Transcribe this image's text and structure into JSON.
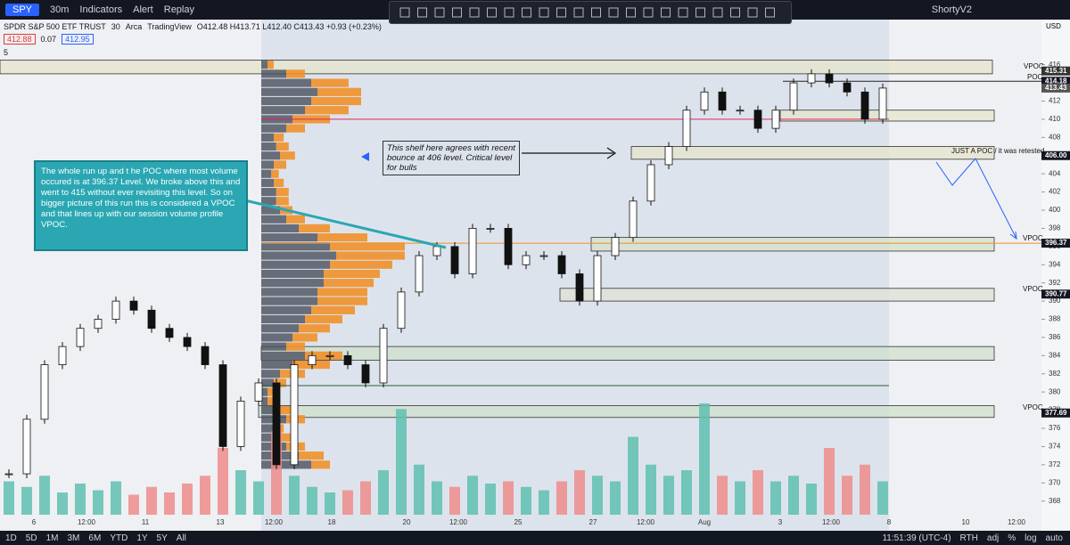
{
  "header": {
    "symbol": "SPY",
    "interval": "30m",
    "indicators": "Indicators",
    "alert": "Alert",
    "replay": "Replay",
    "layout": "ShortyV2"
  },
  "legend": {
    "name": "SPDR S&P 500 ETF TRUST",
    "interval": "30",
    "exchange": "Arca",
    "source": "TradingView",
    "ohlc": "O412.48 H413.71 L412.40 C413.43 +0.93 (+0.23%)",
    "bid": "412.88",
    "spread": "0.07",
    "ask": "412.95",
    "indicator_count": "5"
  },
  "currency": "USD",
  "chart_data": {
    "type": "candlestick",
    "closes": [
      371,
      377,
      383,
      385,
      387,
      388,
      390,
      389,
      387,
      386,
      385,
      383,
      374,
      379,
      381,
      372,
      383,
      384,
      384,
      383,
      381,
      387,
      391,
      395,
      396,
      393,
      398,
      398,
      394,
      395,
      395,
      393,
      390,
      395,
      397,
      401,
      405,
      407,
      411,
      413,
      411,
      411,
      409,
      411,
      414,
      415,
      414,
      413,
      410,
      413.43
    ],
    "volumes": [
      30,
      25,
      35,
      20,
      28,
      22,
      30,
      18,
      25,
      20,
      28,
      35,
      60,
      40,
      30,
      75,
      35,
      25,
      20,
      22,
      30,
      40,
      95,
      45,
      30,
      25,
      35,
      28,
      30,
      25,
      22,
      30,
      40,
      35,
      30,
      70,
      45,
      35,
      40,
      100,
      35,
      30,
      40,
      30,
      35,
      28,
      60,
      35,
      45,
      30
    ],
    "profile_prices": [
      372,
      373,
      374,
      375,
      376,
      377,
      378,
      379,
      380,
      381,
      382,
      383,
      384,
      385,
      386,
      387,
      388,
      389,
      390,
      391,
      392,
      393,
      394,
      395,
      396,
      397,
      398,
      399,
      400,
      401,
      402,
      403,
      404,
      405,
      406,
      407,
      408,
      409,
      410,
      411,
      412,
      413,
      414,
      415,
      416
    ],
    "profile_down": [
      40,
      30,
      20,
      15,
      10,
      20,
      15,
      5,
      5,
      10,
      15,
      25,
      35,
      20,
      25,
      30,
      35,
      40,
      45,
      45,
      50,
      50,
      55,
      60,
      55,
      45,
      30,
      20,
      15,
      12,
      12,
      10,
      8,
      10,
      15,
      12,
      10,
      20,
      25,
      35,
      40,
      45,
      40,
      20,
      5
    ],
    "profile_up": [
      15,
      20,
      15,
      12,
      8,
      15,
      10,
      5,
      5,
      10,
      20,
      30,
      30,
      15,
      20,
      25,
      30,
      35,
      40,
      40,
      40,
      45,
      50,
      55,
      60,
      40,
      25,
      15,
      10,
      10,
      10,
      8,
      6,
      10,
      12,
      10,
      8,
      15,
      30,
      35,
      40,
      35,
      30,
      15,
      5
    ],
    "zones": [
      {
        "low": 415,
        "high": 416.5
      },
      {
        "low": 409.8,
        "high": 411
      },
      {
        "low": 405.6,
        "high": 407
      },
      {
        "low": 395.5,
        "high": 397
      },
      {
        "low": 390,
        "high": 391.4
      },
      {
        "low": 383.5,
        "high": 385
      },
      {
        "low": 377.2,
        "high": 378.5
      }
    ],
    "levels": [
      410,
      396.37,
      380.7,
      414.18
    ],
    "ylim": [
      366.5,
      419.2
    ],
    "yticks": [
      368,
      370,
      372,
      374,
      376,
      378,
      380,
      382,
      384,
      386,
      388,
      390,
      392,
      394,
      396,
      398,
      400,
      402,
      404,
      406,
      408,
      410,
      412,
      414,
      416
    ],
    "price_labels": [
      415.31,
      414.18,
      413.43,
      {
        "value": 406,
        "label": "406.00"
      },
      396.37,
      390.77,
      377.69
    ],
    "x_labels": [
      "6",
      "12:00",
      "11",
      "13",
      "12:00",
      "18",
      "20",
      "12:00",
      "25",
      "27",
      "12:00",
      "Aug",
      "3",
      "12:00",
      "8",
      "10",
      "12:00"
    ],
    "level_notes": [
      "VPOC",
      "POC",
      "JUST A POC / it was retested",
      "VPOC",
      "VPOC",
      "VPOC"
    ]
  },
  "annotations": {
    "callout": "The whole run up and t he POC where most volume occured is at 396.37 Level. We broke above this and went to 415 without ever revisiting this level. So on bigger picture of this run this is considered a VPOC and that lines up with our session volume profile VPOC.",
    "shelf": "This shelf here agrees with recent bounce at 406 level. Critical level for bulls"
  },
  "footer": {
    "ranges": [
      "1D",
      "5D",
      "1M",
      "3M",
      "6M",
      "YTD",
      "1Y",
      "5Y",
      "All"
    ],
    "clock": "11:51:39 (UTC-4)",
    "session": "RTH",
    "adj": "adj",
    "percent": "%",
    "log": "log",
    "auto": "auto"
  }
}
